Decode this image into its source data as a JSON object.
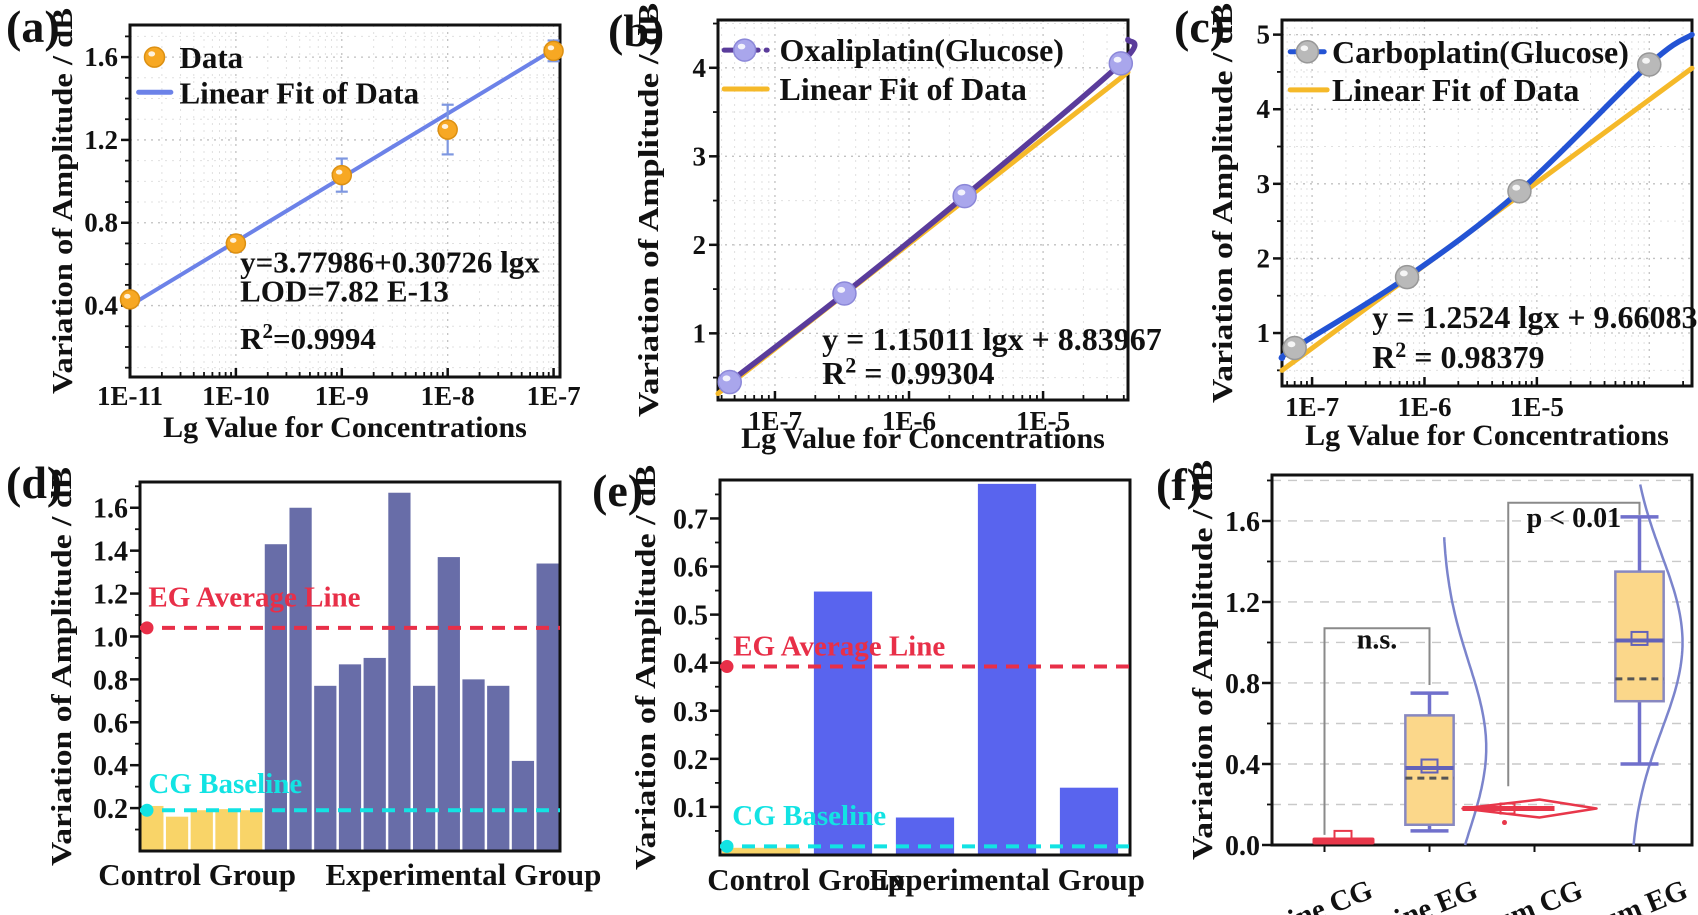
{
  "figure": {
    "panels": [
      {
        "label": "(a)"
      },
      {
        "label": "(b)"
      },
      {
        "label": "(c)"
      },
      {
        "label": "(d)"
      },
      {
        "label": "(e)"
      },
      {
        "label": "(f)"
      }
    ]
  },
  "chart_data": [
    {
      "id": "a",
      "type": "scatter",
      "xlabel": "Lg Value for Concentrations",
      "ylabel": "Variation of Amplitude / dB",
      "x_scale": "log",
      "x_domain": [
        1e-11,
        1.15e-07
      ],
      "y_domain": [
        0.055,
        1.755
      ],
      "x_ticks": [
        {
          "v": 1e-11,
          "t": "1E-11"
        },
        {
          "v": 1e-10,
          "t": "1E-10"
        },
        {
          "v": 1e-09,
          "t": "1E-9"
        },
        {
          "v": 1e-08,
          "t": "1E-8"
        },
        {
          "v": 1e-07,
          "t": "1E-7"
        }
      ],
      "y_ticks": [
        {
          "v": 0.4,
          "t": "0.4"
        },
        {
          "v": 0.8,
          "t": "0.8"
        },
        {
          "v": 1.2,
          "t": "1.2"
        },
        {
          "v": 1.6,
          "t": "1.6"
        }
      ],
      "y_minor": 0.1,
      "points": {
        "x": [
          1e-11,
          1e-10,
          1e-09,
          1e-08,
          1e-07
        ],
        "y": [
          0.43,
          0.7,
          1.03,
          1.25,
          1.63
        ],
        "yerr": [
          0.025,
          0.04,
          0.08,
          0.12,
          0.05
        ],
        "color": "#F7A823",
        "edge": "#DC9012",
        "err_color": "#7E97E0",
        "r": 9.5
      },
      "fit": {
        "x": [
          1e-11,
          1.15e-07
        ],
        "y": [
          0.4,
          1.655
        ],
        "color": "#6C82E8",
        "width": 4
      },
      "legend": {
        "fx0": 0.02,
        "fx1": 0.095,
        "fxm": 0.057,
        "fxt": 0.115,
        "rows": [
          {
            "kind": "marker",
            "label": "Data",
            "y": 1.6
          },
          {
            "kind": "line",
            "label": "Linear Fit of Data",
            "y": 1.43
          }
        ]
      },
      "annotations": [
        {
          "text": "y=3.77986+0.30726 lgx",
          "fx": 0.256,
          "y": 0.56
        },
        {
          "text": "LOD=7.82 E-13",
          "fx": 0.256,
          "y": 0.42
        },
        {
          "text": "R²=0.9994",
          "fx": 0.256,
          "y": 0.19
        }
      ]
    },
    {
      "id": "b",
      "type": "scatter",
      "xlabel": "Lg Value for Concentrations",
      "ylabel": "Variation of Amplitude / dB",
      "x_scale": "log",
      "x_domain": [
        3.76e-08,
        4.3e-05
      ],
      "y_domain": [
        0.247,
        4.54
      ],
      "x_ticks": [
        {
          "v": 1e-07,
          "t": "1E-7"
        },
        {
          "v": 1e-06,
          "t": "1E-6"
        },
        {
          "v": 1e-05,
          "t": "1E-5"
        }
      ],
      "y_ticks": [
        {
          "v": 1,
          "t": "1"
        },
        {
          "v": 2,
          "t": "2"
        },
        {
          "v": 3,
          "t": "3"
        },
        {
          "v": 4,
          "t": "4"
        }
      ],
      "y_minor": 0.5,
      "line": {
        "x": [
          4.6e-08,
          3.3e-07,
          2.6e-06,
          3.8e-05,
          4.3e-05
        ],
        "y": [
          0.45,
          1.45,
          2.55,
          4.05,
          4.32
        ],
        "color": "#5A3C9B",
        "width": 5.5
      },
      "points": {
        "x": [
          4.6e-08,
          3.3e-07,
          2.6e-06,
          3.8e-05
        ],
        "y": [
          0.45,
          1.45,
          2.55,
          4.05
        ],
        "color": "#A9A6EC",
        "edge": "#8B87D8",
        "r": 11.5
      },
      "fit": {
        "x": [
          3.76e-08,
          4.3e-05
        ],
        "y": [
          0.32,
          3.95
        ],
        "color": "#F5B929",
        "width": 5
      },
      "legend": {
        "fx0": 0.015,
        "fx1": 0.12,
        "fxm": 0.065,
        "fxt": 0.15,
        "rows": [
          {
            "kind": "dash-marker",
            "label": "Oxaliplatin(Glucose)",
            "y": 4.2
          },
          {
            "kind": "line",
            "label": "Linear Fit of Data",
            "y": 3.76
          }
        ]
      },
      "annotations": [
        {
          "text": "y = 1.15011 lgx + 8.83967",
          "fx": 0.254,
          "y": 0.81
        },
        {
          "text": "R² = 0.99304",
          "fx": 0.254,
          "y": 0.43
        }
      ]
    },
    {
      "id": "c",
      "type": "scatter",
      "xlabel": "Lg Value for Concentrations",
      "ylabel": "Variation of Amplitude / dB",
      "x_scale": "log",
      "x_domain": [
        5.4e-08,
        0.00024
      ],
      "y_domain": [
        0.29,
        5.196
      ],
      "x_ticks": [
        {
          "v": 1e-07,
          "t": "1E-7"
        },
        {
          "v": 1e-06,
          "t": "1E-6"
        },
        {
          "v": 1e-05,
          "t": "1E-5"
        }
      ],
      "y_ticks": [
        {
          "v": 1,
          "t": "1"
        },
        {
          "v": 2,
          "t": "2"
        },
        {
          "v": 3,
          "t": "3"
        },
        {
          "v": 4,
          "t": "4"
        },
        {
          "v": 5,
          "t": "5"
        }
      ],
      "y_minor": 0.5,
      "line": {
        "x": [
          5.4e-08,
          7e-08,
          7e-07,
          7e-06,
          0.0001,
          0.00024
        ],
        "y": [
          0.66,
          0.8,
          1.75,
          2.9,
          4.6,
          5.0
        ],
        "color": "#2353D4",
        "width": 5.5
      },
      "points": {
        "x": [
          7e-08,
          7e-07,
          7e-06,
          0.0001
        ],
        "y": [
          0.8,
          1.75,
          2.9,
          4.6
        ],
        "color": "#B9B9B9",
        "edge": "#979797",
        "r": 11.5
      },
      "fit": {
        "x": [
          5.4e-08,
          0.00024
        ],
        "y": [
          0.5,
          4.55
        ],
        "color": "#F5B929",
        "width": 5
      },
      "legend": {
        "fx0": 0.02,
        "fx1": 0.11,
        "fxm": 0.062,
        "fxt": 0.122,
        "rows": [
          {
            "kind": "dash-marker",
            "label": "Carboplatin(Glucose)",
            "y": 4.77
          },
          {
            "kind": "line",
            "label": "Linear Fit of Data",
            "y": 4.26
          }
        ]
      },
      "annotations": [
        {
          "text": "y = 1.2524 lgx + 9.66083",
          "fx": 0.22,
          "y": 1.07
        },
        {
          "text": "R² = 0.98379",
          "fx": 0.22,
          "y": 0.53
        }
      ]
    },
    {
      "id": "d",
      "type": "bar",
      "ylabel": "Variation of Amplitude / dB",
      "y_domain": [
        0,
        1.72
      ],
      "y_ticks": [
        {
          "v": 0.2,
          "t": "0.2"
        },
        {
          "v": 0.4,
          "t": "0.4"
        },
        {
          "v": 0.6,
          "t": "0.6"
        },
        {
          "v": 0.8,
          "t": "0.8"
        },
        {
          "v": 1.0,
          "t": "1.0"
        },
        {
          "v": 1.2,
          "t": "1.2"
        },
        {
          "v": 1.4,
          "t": "1.4"
        },
        {
          "v": 1.6,
          "t": "1.6"
        }
      ],
      "y_minor": 0.1,
      "group_colors": [
        "#F9D468",
        "#686DA8"
      ],
      "bar_wf": 0.9,
      "bars": [
        {
          "v": 0.21,
          "g": 0
        },
        {
          "v": 0.16,
          "g": 0
        },
        {
          "v": 0.19,
          "g": 0
        },
        {
          "v": 0.195,
          "g": 0
        },
        {
          "v": 0.19,
          "g": 0
        },
        {
          "v": 1.43,
          "g": 1
        },
        {
          "v": 1.6,
          "g": 1
        },
        {
          "v": 0.77,
          "g": 1
        },
        {
          "v": 0.87,
          "g": 1
        },
        {
          "v": 0.9,
          "g": 1
        },
        {
          "v": 1.67,
          "g": 1
        },
        {
          "v": 0.77,
          "g": 1
        },
        {
          "v": 1.37,
          "g": 1
        },
        {
          "v": 0.8,
          "g": 1
        },
        {
          "v": 0.77,
          "g": 1
        },
        {
          "v": 0.42,
          "g": 1
        },
        {
          "v": 1.34,
          "g": 1
        }
      ],
      "ref_lines": [
        {
          "v": 1.04,
          "color": "#E82F48",
          "label": "EG Average Line",
          "label_y": 1.14,
          "label_fx": 0.02
        },
        {
          "v": 0.19,
          "color": "#12E3E3",
          "label": "CG Baseline",
          "label_y": 0.27,
          "label_fx": 0.02
        }
      ],
      "x_groups": [
        {
          "label": "Control Group",
          "fx": 0.136
        },
        {
          "label": "Experimental Group",
          "fx": 0.77
        }
      ]
    },
    {
      "id": "e",
      "type": "bar",
      "ylabel": "Variation of Amplitude / dB",
      "y_domain": [
        0,
        0.78
      ],
      "y_ticks": [
        {
          "v": 0.1,
          "t": "0.1"
        },
        {
          "v": 0.2,
          "t": "0.2"
        },
        {
          "v": 0.3,
          "t": "0.3"
        },
        {
          "v": 0.4,
          "t": "0.4"
        },
        {
          "v": 0.5,
          "t": "0.5"
        },
        {
          "v": 0.6,
          "t": "0.6"
        },
        {
          "v": 0.7,
          "t": "0.7"
        }
      ],
      "y_minor": 0.05,
      "group_colors": [
        "#F9D468",
        "#5964EE"
      ],
      "bar_wf": 0.71,
      "bars": [
        {
          "v": 0.015,
          "g": 0,
          "wf": 0.95
        },
        {
          "v": 0.548,
          "g": 1
        },
        {
          "v": 0.078,
          "g": 1
        },
        {
          "v": 0.772,
          "g": 1
        },
        {
          "v": 0.14,
          "g": 1
        }
      ],
      "ref_lines": [
        {
          "v": 0.392,
          "color": "#E82F48",
          "label": "EG Average Line",
          "label_y": 0.415,
          "label_fx": 0.032
        },
        {
          "v": 0.018,
          "color": "#12E3E3",
          "label": "CG Baseline",
          "label_y": 0.062,
          "label_fx": 0.03
        }
      ],
      "x_groups": [
        {
          "label": "Control Group",
          "fx": 0.21
        },
        {
          "label": "Experimental Group",
          "fx": 0.7
        }
      ]
    },
    {
      "id": "f",
      "type": "box",
      "ylabel": "Variation of Amplitude / dB",
      "y_domain": [
        0,
        1.827
      ],
      "y_ticks": [
        {
          "v": 0.0,
          "t": "0.0"
        },
        {
          "v": 0.4,
          "t": "0.4"
        },
        {
          "v": 0.8,
          "t": "0.8"
        },
        {
          "v": 1.2,
          "t": "1.2"
        },
        {
          "v": 1.6,
          "t": "1.6"
        }
      ],
      "grid_step": 0.2,
      "categories": [
        "Urine CG",
        "Urine EG",
        "Serum CG",
        "Serum EG"
      ],
      "box_style": {
        "fill": "#FBD78A",
        "stroke": "#8888C0",
        "median": "#6262B8",
        "whisker": "#7070CC",
        "dash": "#555555"
      },
      "items": [
        {
          "type": "flat",
          "y": 0.02,
          "mean": 0.04,
          "color": "#E8374A"
        },
        {
          "type": "box",
          "q1": 0.1,
          "q3": 0.64,
          "median": 0.38,
          "mean": 0.39,
          "dash": 0.33,
          "w_lo": 0.07,
          "w_hi": 0.75
        },
        {
          "type": "arrow",
          "y": 0.18,
          "color": "#E8374A"
        },
        {
          "type": "box",
          "q1": 0.71,
          "q3": 1.35,
          "median": 1.01,
          "mean": 1.02,
          "dash": 0.82,
          "w_lo": 0.4,
          "w_hi": 1.62
        }
      ],
      "curves": [
        {
          "slot": 1,
          "base_f": 0.12,
          "amp_f": 0.42,
          "mu": 0.48,
          "sigma": 0.42,
          "y_top": 1.52,
          "y_bot": 0.0,
          "color": "#7B84CC"
        },
        {
          "slot": 3,
          "base_f": -0.09,
          "amp_f": 0.5,
          "mu": 1.0,
          "sigma": 0.43,
          "y_top": 1.78,
          "y_bot": 0.0,
          "color": "#7B84CC"
        }
      ],
      "brackets": [
        {
          "x1_slot": 0,
          "x1_off": 0,
          "x2_slot": 1,
          "x2_off": 0,
          "y_top": 1.07,
          "y1": 0.05,
          "y2": 0.79,
          "label": "n.s.",
          "label_y": 0.97
        },
        {
          "x1_slot": 2,
          "x1_off": -0.25,
          "x2_slot": 3,
          "x2_off": 0,
          "y_top": 1.69,
          "y1": 0.29,
          "y2": 1.63,
          "label": "p < 0.01",
          "label_y": 1.57
        }
      ]
    }
  ]
}
